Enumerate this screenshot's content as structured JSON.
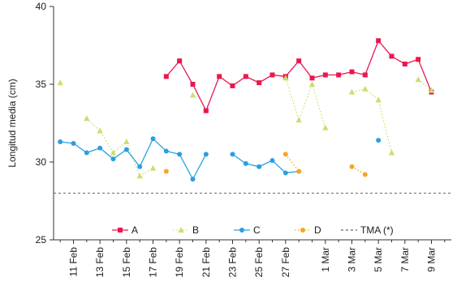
{
  "chart_data": {
    "type": "line",
    "title": "",
    "xlabel": "",
    "ylabel": "Longitud media (cm)",
    "ylim": [
      25,
      40
    ],
    "yticks": [
      "25",
      "30",
      "35",
      "40"
    ],
    "xtick_labels": [
      "11 Feb",
      "13 Feb",
      "15 Feb",
      "17 Feb",
      "19 Feb",
      "21 Feb",
      "23 Feb",
      "25 Feb",
      "27 Feb",
      "1 Mar",
      "3 Mar",
      "5 Mar",
      "7 Mar",
      "9 Mar"
    ],
    "x": [
      "10 Feb",
      "11 Feb",
      "12 Feb",
      "13 Feb",
      "14 Feb",
      "15 Feb",
      "16 Feb",
      "17 Feb",
      "18 Feb",
      "19 Feb",
      "20 Feb",
      "21 Feb",
      "22 Feb",
      "23 Feb",
      "24 Feb",
      "25 Feb",
      "26 Feb",
      "27 Feb",
      "28 Feb",
      "29 Feb",
      "1 Mar",
      "2 Mar",
      "3 Mar",
      "4 Mar",
      "5 Mar",
      "6 Mar",
      "7 Mar",
      "8 Mar",
      "9 Mar",
      "10 Mar"
    ],
    "series": [
      {
        "name": "A",
        "color": "#e8184f",
        "marker": "square",
        "line": "solid",
        "values": [
          null,
          null,
          null,
          null,
          null,
          null,
          null,
          null,
          35.5,
          36.5,
          35.0,
          33.3,
          35.5,
          34.9,
          35.5,
          35.1,
          35.6,
          35.5,
          36.5,
          35.4,
          35.6,
          35.6,
          35.8,
          35.6,
          37.8,
          36.8,
          36.3,
          36.6,
          34.5,
          null
        ]
      },
      {
        "name": "B",
        "color": "#c8e06a",
        "marker": "triangle",
        "line": "dotted",
        "values": [
          35.1,
          null,
          32.8,
          32.0,
          30.6,
          31.3,
          29.1,
          29.6,
          null,
          null,
          34.3,
          null,
          null,
          null,
          null,
          null,
          null,
          35.4,
          32.7,
          35.0,
          32.2,
          null,
          34.5,
          34.7,
          34.0,
          30.6,
          null,
          35.3,
          34.6,
          null
        ]
      },
      {
        "name": "C",
        "color": "#2aa0e0",
        "marker": "circle",
        "line": "solid",
        "values": [
          31.3,
          31.2,
          30.6,
          30.9,
          30.2,
          30.8,
          29.7,
          31.5,
          30.7,
          30.5,
          28.9,
          30.5,
          null,
          30.5,
          29.9,
          29.7,
          30.1,
          29.3,
          29.4,
          null,
          null,
          null,
          null,
          null,
          31.4,
          null,
          null,
          null,
          null,
          null
        ]
      },
      {
        "name": "D",
        "color": "#f5a623",
        "marker": "circle",
        "line": "dotted",
        "values": [
          null,
          null,
          null,
          null,
          null,
          null,
          null,
          null,
          29.4,
          null,
          null,
          null,
          null,
          null,
          null,
          null,
          null,
          30.5,
          29.4,
          null,
          null,
          null,
          29.7,
          29.2,
          null,
          null,
          null,
          null,
          null,
          null
        ]
      },
      {
        "name": "TMA (*)",
        "color": "#666666",
        "marker": "none",
        "line": "dashed",
        "constant": 28.0
      }
    ],
    "grid": false,
    "legend_position": "bottom-inside"
  }
}
